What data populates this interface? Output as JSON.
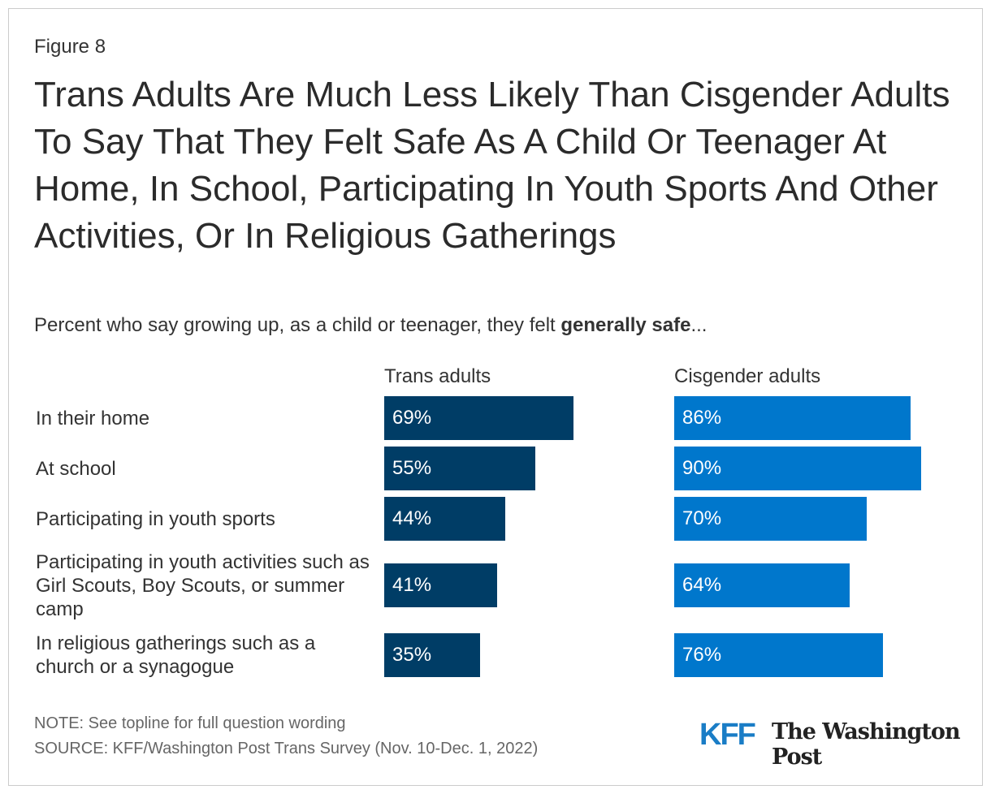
{
  "figure_label": "Figure 8",
  "chart_data": {
    "type": "bar",
    "title": "Trans Adults Are Much Less Likely Than Cisgender Adults To Say That They Felt Safe As A Child Or Teenager At Home, In School, Participating In Youth Sports And Other Activities, Or In Religious Gatherings",
    "subtitle_prefix": "Percent who say growing up, as a child or teenager, they felt ",
    "subtitle_bold": "generally safe",
    "subtitle_suffix": "...",
    "categories": [
      "In their home",
      "At school",
      "Participating in youth sports",
      "Participating in youth activities such as Girl Scouts, Boy Scouts, or summer camp",
      "In religious gatherings such as a church or a synagogue"
    ],
    "series": [
      {
        "name": "Trans adults",
        "values": [
          69,
          55,
          44,
          41,
          35
        ],
        "color": "#003d66"
      },
      {
        "name": "Cisgender adults",
        "values": [
          86,
          90,
          70,
          64,
          76
        ],
        "color": "#0077cc"
      }
    ],
    "value_suffix": "%",
    "xlim": [
      0,
      100
    ]
  },
  "note": "NOTE: See topline for full question wording",
  "source": "SOURCE: KFF/Washington Post Trans Survey (Nov. 10-Dec. 1, 2022)",
  "logos": {
    "kff": "KFF",
    "wapo": "The Washington Post"
  }
}
